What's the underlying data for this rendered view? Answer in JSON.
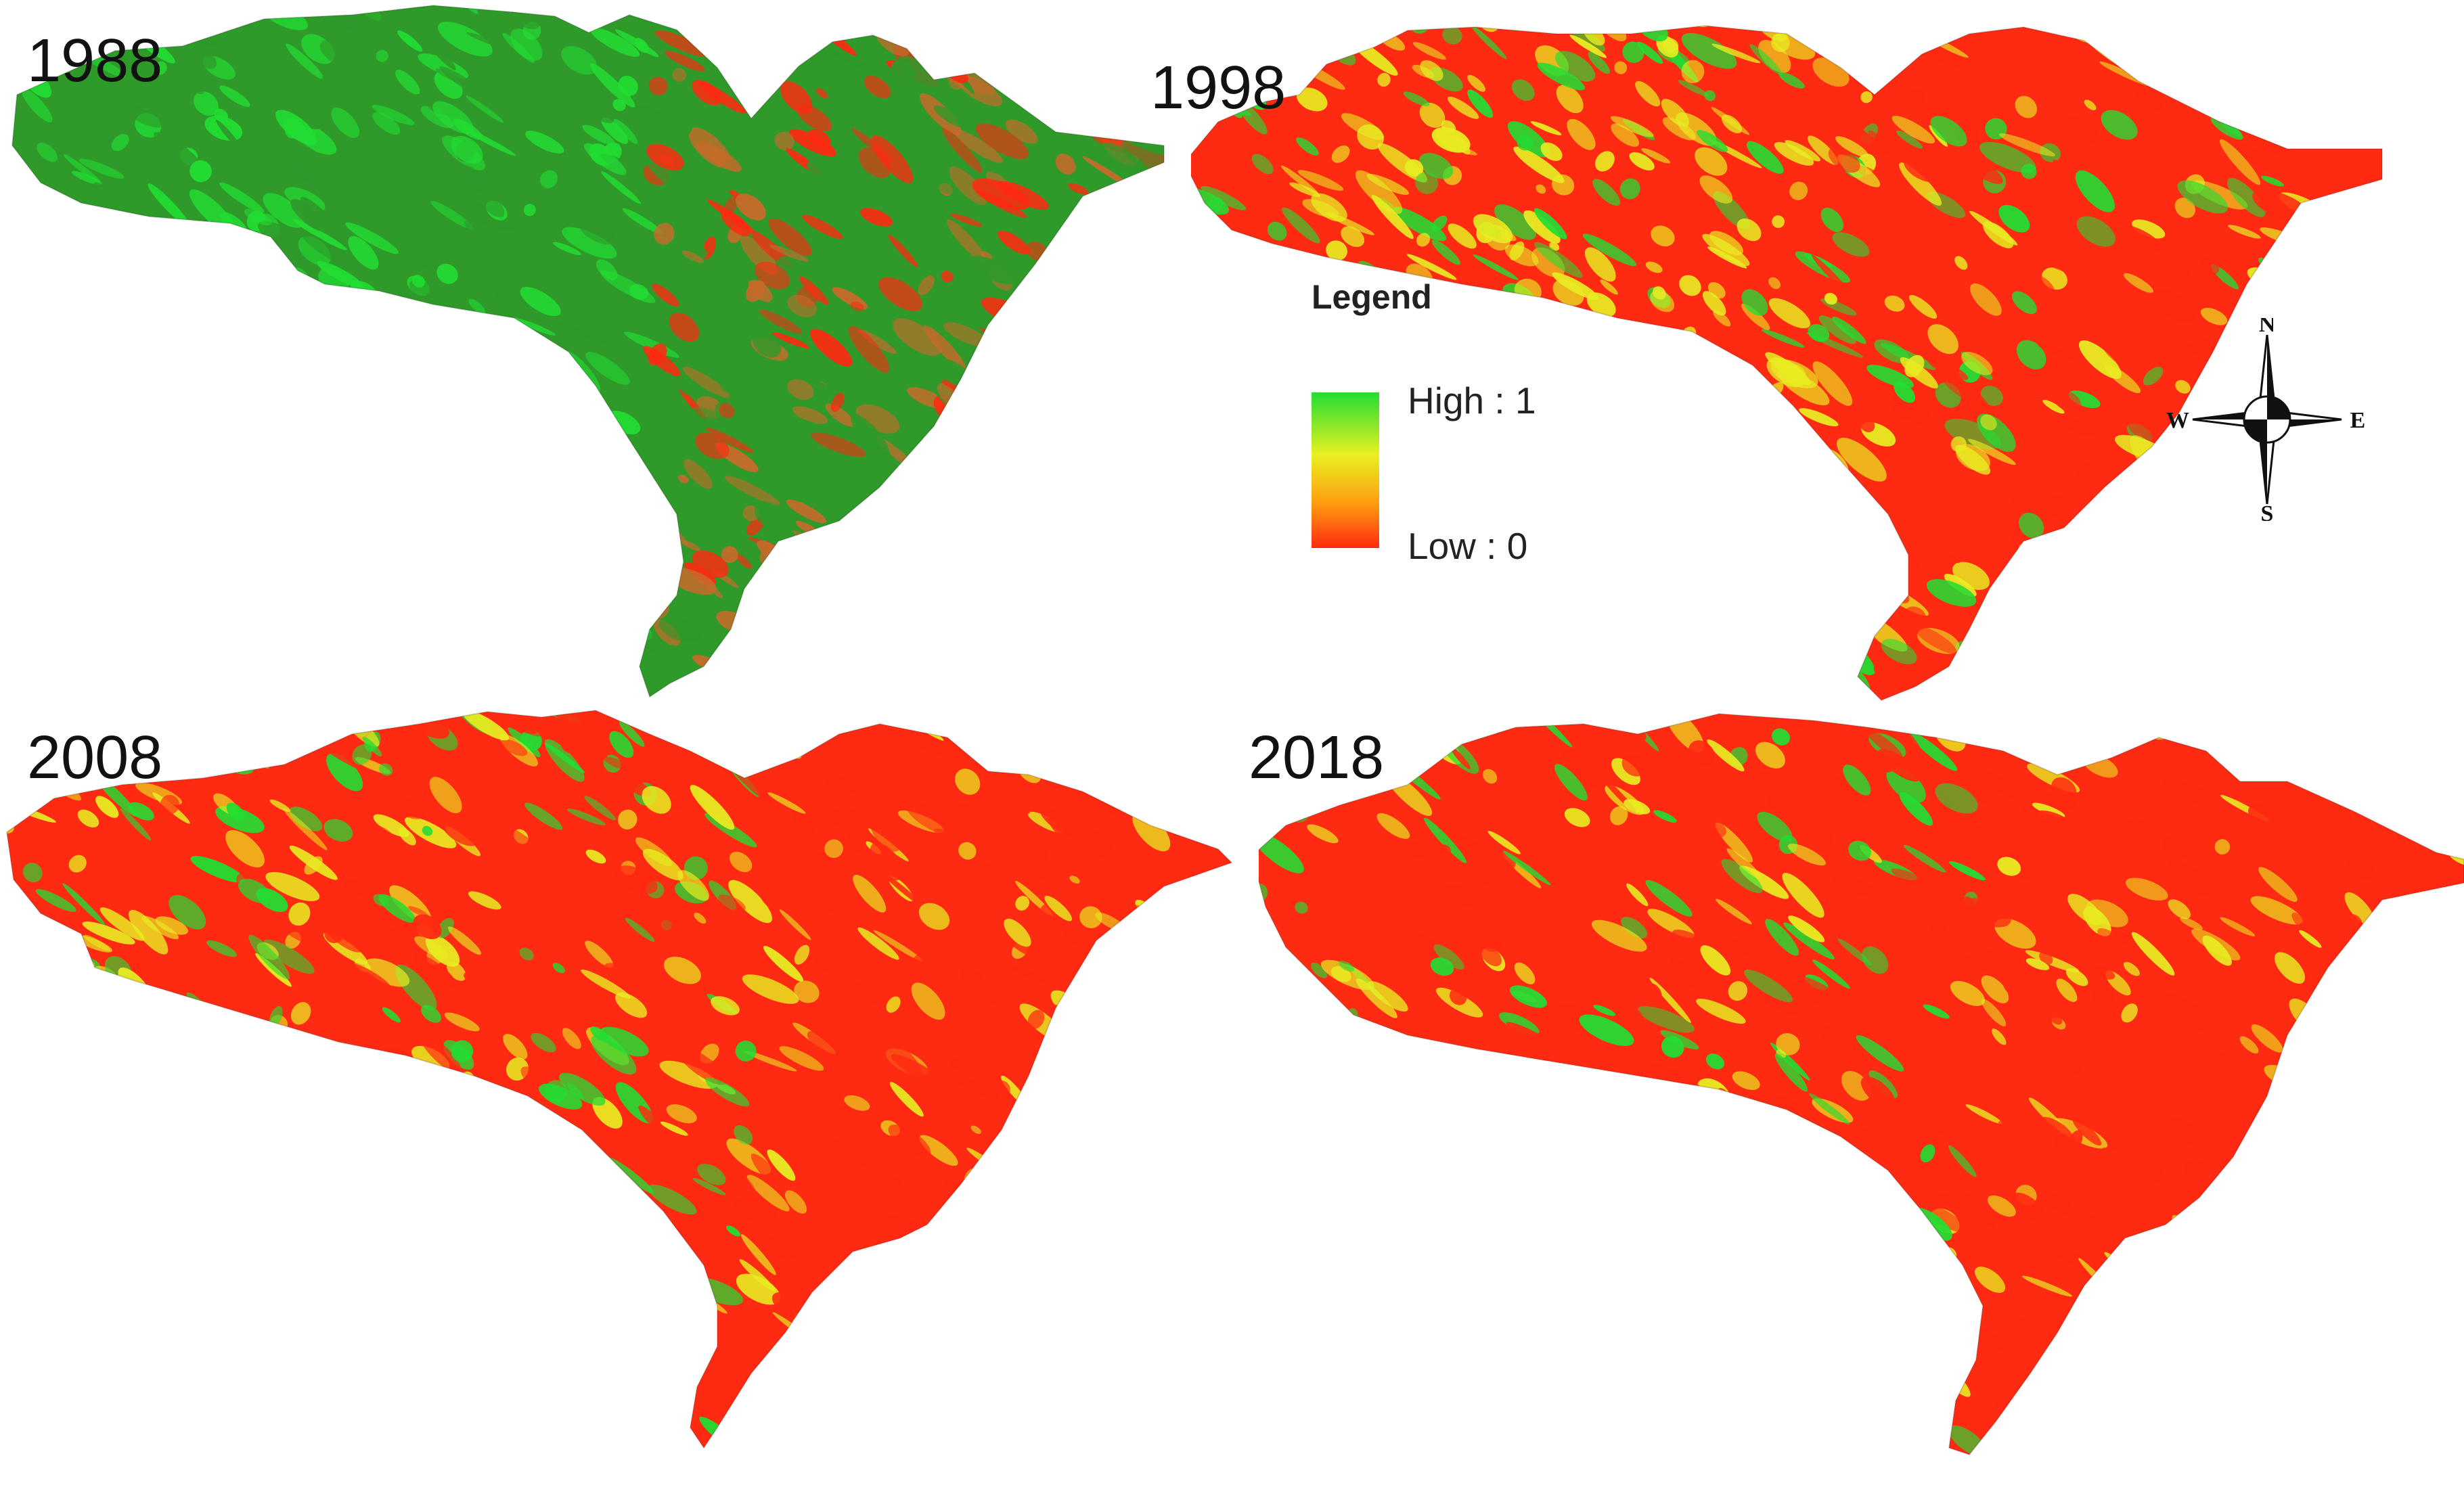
{
  "figure": {
    "panels": [
      {
        "id": "p1988",
        "year": "1988",
        "dominant": "high-west"
      },
      {
        "id": "p1998",
        "year": "1998",
        "dominant": "mixed-yellow"
      },
      {
        "id": "p2008",
        "year": "2008",
        "dominant": "mixed-red"
      },
      {
        "id": "p2018",
        "year": "2018",
        "dominant": "low"
      }
    ],
    "legend": {
      "title": "Legend",
      "high_label": "High : 1",
      "low_label": "Low : 0",
      "ramp_colors": [
        "#22dd33",
        "#e8f020",
        "#ff9a10",
        "#ff2a10"
      ]
    },
    "compass": {
      "n": "N",
      "s": "S",
      "e": "E",
      "w": "W"
    },
    "palette": {
      "high": "#22dd33",
      "mid": "#e8ec22",
      "low": "#ff2a12",
      "dark": "#2f9a2a",
      "brown": "#c86a2a"
    }
  }
}
